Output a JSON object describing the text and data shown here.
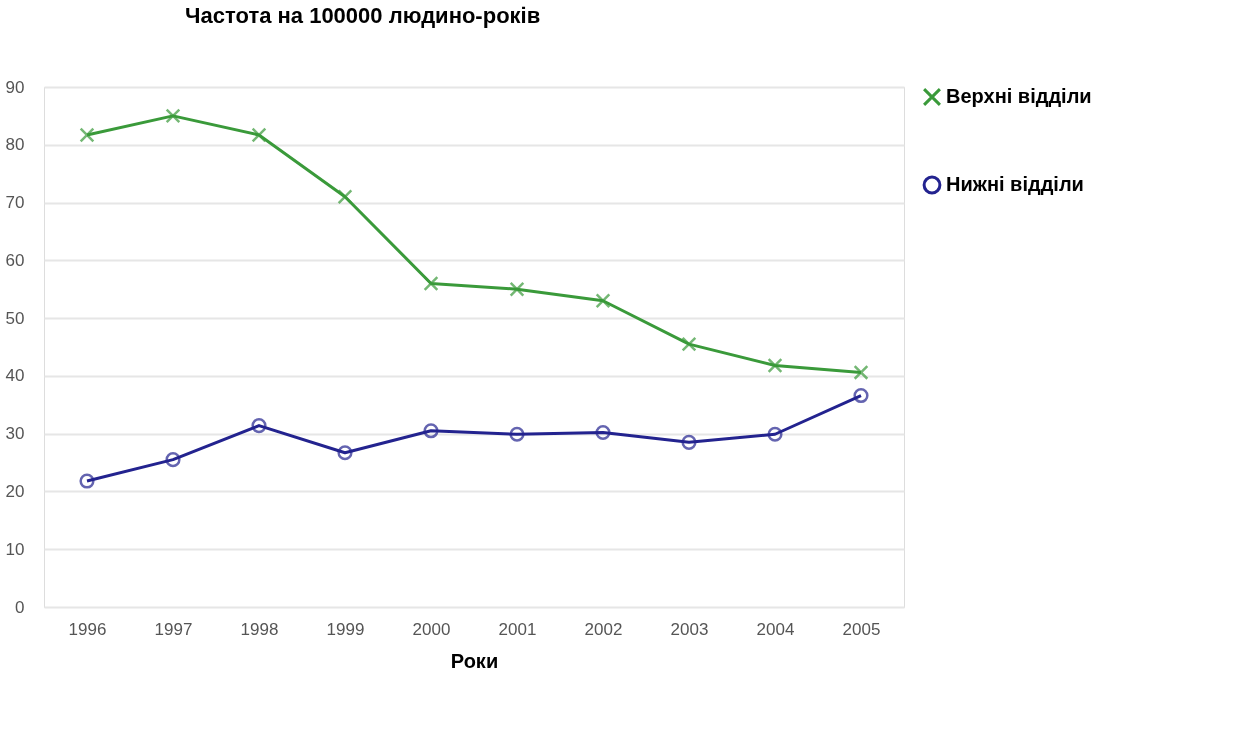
{
  "chart_data": {
    "type": "line",
    "title": "Частота на 100000 людино-років",
    "xlabel": "Роки",
    "categories": [
      "1996",
      "1997",
      "1998",
      "1999",
      "2000",
      "2001",
      "2002",
      "2003",
      "2004",
      "2005"
    ],
    "series": [
      {
        "name": "Верхні відділи",
        "color": "#3a9a3a",
        "marker": "cross",
        "values": [
          81.7,
          85,
          81.7,
          71,
          56,
          55,
          53,
          45.5,
          41.8,
          40.6
        ]
      },
      {
        "name": "Нижні відділи",
        "color": "#23238f",
        "marker": "circle",
        "values": [
          21.8,
          25.5,
          31.4,
          26.7,
          30.5,
          29.9,
          30.2,
          28.5,
          29.9,
          36.6
        ]
      }
    ],
    "ylim": [
      0,
      90
    ],
    "yticks": [
      0,
      10,
      20,
      30,
      40,
      50,
      60,
      70,
      80,
      90
    ],
    "grid": "y",
    "legend": "right",
    "line_style": "solid"
  }
}
